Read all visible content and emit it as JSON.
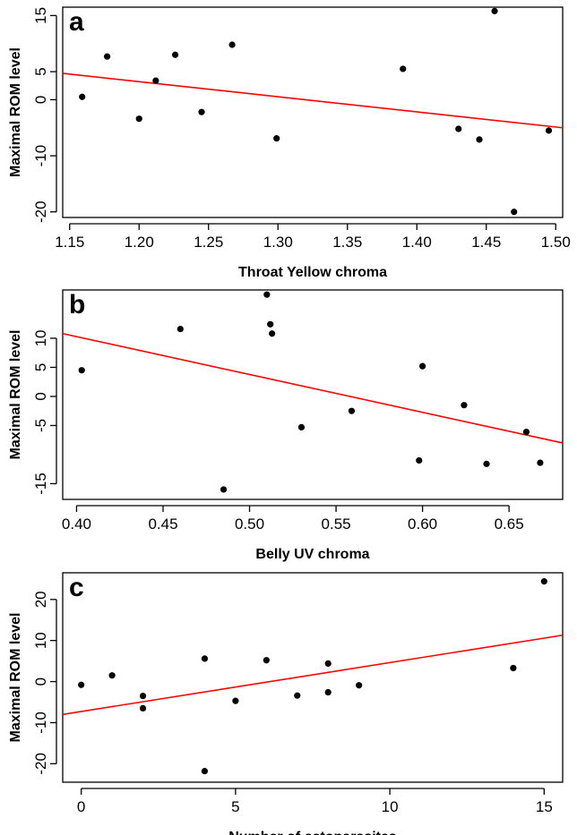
{
  "chart_data": [
    {
      "type": "scatter",
      "panel": "a",
      "xlabel": "Throat Yellow chroma",
      "ylabel": "Maximal ROM level",
      "xlim": [
        1.145,
        1.505
      ],
      "ylim": [
        -21,
        16.5
      ],
      "xticks": [
        1.15,
        1.2,
        1.25,
        1.3,
        1.35,
        1.4,
        1.45,
        1.5
      ],
      "xtick_labels": [
        "1.15",
        "1.20",
        "1.25",
        "1.30",
        "1.35",
        "1.40",
        "1.45",
        "1.50"
      ],
      "yticks": [
        -20,
        -10,
        0,
        5,
        15
      ],
      "ytick_labels": [
        "-20",
        "-10",
        "0",
        "5",
        "15"
      ],
      "points": [
        {
          "x": 1.159,
          "y": 0.5
        },
        {
          "x": 1.177,
          "y": 7.7
        },
        {
          "x": 1.2,
          "y": -3.4
        },
        {
          "x": 1.212,
          "y": 3.4
        },
        {
          "x": 1.226,
          "y": 8.0
        },
        {
          "x": 1.245,
          "y": -2.2
        },
        {
          "x": 1.267,
          "y": 9.8
        },
        {
          "x": 1.299,
          "y": -6.9
        },
        {
          "x": 1.39,
          "y": 5.5
        },
        {
          "x": 1.43,
          "y": -5.2
        },
        {
          "x": 1.445,
          "y": -7.1
        },
        {
          "x": 1.456,
          "y": 15.8
        },
        {
          "x": 1.47,
          "y": -20.0
        },
        {
          "x": 1.495,
          "y": -5.5
        }
      ],
      "fit": {
        "x": [
          1.145,
          1.505
        ],
        "y": [
          4.7,
          -5.0
        ]
      },
      "grid": false
    },
    {
      "type": "scatter",
      "panel": "b",
      "xlabel": "Belly UV chroma",
      "ylabel": "Maximal ROM level",
      "xlim": [
        0.392,
        0.681
      ],
      "ylim": [
        -17.7,
        18.3
      ],
      "xticks": [
        0.4,
        0.45,
        0.5,
        0.55,
        0.6,
        0.65
      ],
      "xtick_labels": [
        "0.40",
        "0.45",
        "0.50",
        "0.55",
        "0.60",
        "0.65"
      ],
      "yticks": [
        -15,
        -5,
        0,
        5,
        10
      ],
      "ytick_labels": [
        "-15",
        "-5",
        "0",
        "5",
        "10"
      ],
      "points": [
        {
          "x": 0.403,
          "y": 4.5
        },
        {
          "x": 0.46,
          "y": 11.6
        },
        {
          "x": 0.485,
          "y": -16.0
        },
        {
          "x": 0.51,
          "y": 17.5
        },
        {
          "x": 0.512,
          "y": 12.4
        },
        {
          "x": 0.513,
          "y": 10.8
        },
        {
          "x": 0.53,
          "y": -5.3
        },
        {
          "x": 0.559,
          "y": -2.5
        },
        {
          "x": 0.598,
          "y": -11.0
        },
        {
          "x": 0.6,
          "y": 5.2
        },
        {
          "x": 0.624,
          "y": -1.5
        },
        {
          "x": 0.637,
          "y": -11.6
        },
        {
          "x": 0.66,
          "y": -6.1
        },
        {
          "x": 0.668,
          "y": -11.4
        }
      ],
      "fit": {
        "x": [
          0.392,
          0.681
        ],
        "y": [
          10.8,
          -8.0
        ]
      },
      "grid": false
    },
    {
      "type": "scatter",
      "panel": "c",
      "xlabel": "Number of ectoparasites",
      "ylabel": "Maximal ROM level",
      "xlim": [
        -0.6,
        15.6
      ],
      "ylim": [
        -24.5,
        26.5
      ],
      "xticks": [
        0,
        5,
        10,
        15
      ],
      "xtick_labels": [
        "0",
        "5",
        "10",
        "15"
      ],
      "yticks": [
        -20,
        -10,
        0,
        10,
        20
      ],
      "ytick_labels": [
        "-20",
        "-10",
        "0",
        "10",
        "20"
      ],
      "points": [
        {
          "x": 0,
          "y": -0.8
        },
        {
          "x": 1,
          "y": 1.5
        },
        {
          "x": 2,
          "y": -3.5
        },
        {
          "x": 2,
          "y": -6.5
        },
        {
          "x": 4,
          "y": 5.6
        },
        {
          "x": 4,
          "y": -21.8
        },
        {
          "x": 5,
          "y": -4.7
        },
        {
          "x": 6,
          "y": 5.2
        },
        {
          "x": 7,
          "y": -3.4
        },
        {
          "x": 8,
          "y": 4.4
        },
        {
          "x": 8,
          "y": -2.6
        },
        {
          "x": 9,
          "y": -0.9
        },
        {
          "x": 14,
          "y": 3.3
        },
        {
          "x": 15,
          "y": 24.4
        }
      ],
      "fit": {
        "x": [
          -0.6,
          15.6
        ],
        "y": [
          -8.0,
          11.3
        ]
      },
      "grid": false
    }
  ]
}
